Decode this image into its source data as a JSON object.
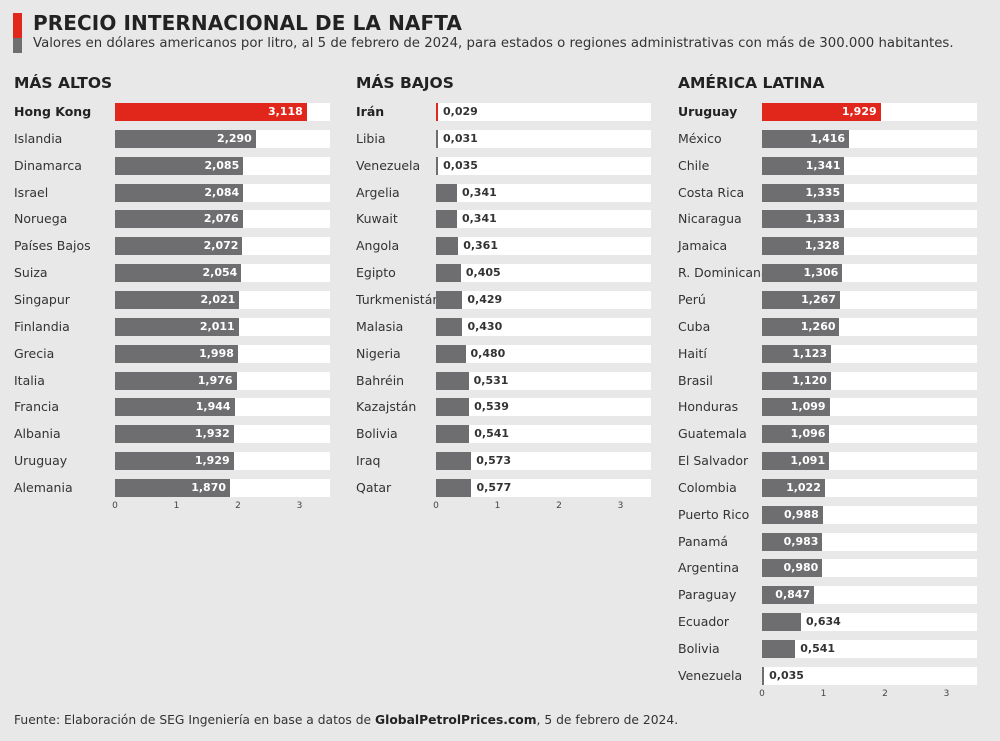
{
  "header": {
    "title": "PRECIO INTERNACIONAL DE LA NAFTA",
    "subtitle": "Valores en dólares americanos por litro, al 5 de febrero de 2024, para estados o regiones administrativas con más de 300.000 habitantes.",
    "accent_color": "#e1261c",
    "accent_color_secondary": "#6e6e70"
  },
  "colors": {
    "bar": "#6e6e70",
    "highlight": "#e1261c",
    "track": "#ffffff",
    "background": "#e8e8e9"
  },
  "chart_data": [
    {
      "type": "bar",
      "orientation": "horizontal",
      "title": "MÁS ALTOS",
      "xlim": [
        0,
        3.5
      ],
      "xticks": [
        "0",
        "1",
        "2",
        "3"
      ],
      "highlight": "Hong Kong",
      "categories": [
        "Hong Kong",
        "Islandia",
        "Dinamarca",
        "Israel",
        "Noruega",
        "Países Bajos",
        "Suiza",
        "Singapur",
        "Finlandia",
        "Grecia",
        "Italia",
        "Francia",
        "Albania",
        "Uruguay",
        "Alemania"
      ],
      "values": [
        3.118,
        2.29,
        2.085,
        2.084,
        2.076,
        2.072,
        2.054,
        2.021,
        2.011,
        1.998,
        1.976,
        1.944,
        1.932,
        1.929,
        1.87
      ],
      "labels": [
        "3,118",
        "2,290",
        "2,085",
        "2,084",
        "2,076",
        "2,072",
        "2,054",
        "2,021",
        "2,011",
        "1,998",
        "1,976",
        "1,944",
        "1,932",
        "1,929",
        "1,870"
      ]
    },
    {
      "type": "bar",
      "orientation": "horizontal",
      "title": "MÁS BAJOS",
      "xlim": [
        0,
        3.5
      ],
      "xticks": [
        "0",
        "1",
        "2",
        "3"
      ],
      "highlight": "Irán",
      "categories": [
        "Irán",
        "Libia",
        "Venezuela",
        "Argelia",
        "Kuwait",
        "Angola",
        "Egipto",
        "Turkmenistán",
        "Malasia",
        "Nigeria",
        "Bahréin",
        "Kazajstán",
        "Bolivia",
        "Iraq",
        "Qatar"
      ],
      "values": [
        0.029,
        0.031,
        0.035,
        0.341,
        0.341,
        0.361,
        0.405,
        0.429,
        0.43,
        0.48,
        0.531,
        0.539,
        0.541,
        0.573,
        0.577
      ],
      "labels": [
        "0,029",
        "0,031",
        "0,035",
        "0,341",
        "0,341",
        "0,361",
        "0,405",
        "0,429",
        "0,430",
        "0,480",
        "0,531",
        "0,539",
        "0,541",
        "0,573",
        "0,577"
      ]
    },
    {
      "type": "bar",
      "orientation": "horizontal",
      "title": "AMÉRICA LATINA",
      "xlim": [
        0,
        3.5
      ],
      "xticks": [
        "0",
        "1",
        "2",
        "3"
      ],
      "highlight": "Uruguay",
      "categories": [
        "Uruguay",
        "México",
        "Chile",
        "Costa Rica",
        "Nicaragua",
        "Jamaica",
        "R. Dominicana",
        "Perú",
        "Cuba",
        "Haití",
        "Brasil",
        "Honduras",
        "Guatemala",
        "El Salvador",
        "Colombia",
        "Puerto Rico",
        "Panamá",
        "Argentina",
        "Paraguay",
        "Ecuador",
        "Bolivia",
        "Venezuela"
      ],
      "values": [
        1.929,
        1.416,
        1.341,
        1.335,
        1.333,
        1.328,
        1.306,
        1.267,
        1.26,
        1.123,
        1.12,
        1.099,
        1.096,
        1.091,
        1.022,
        0.988,
        0.983,
        0.98,
        0.847,
        0.634,
        0.541,
        0.035
      ],
      "labels": [
        "1,929",
        "1,416",
        "1,341",
        "1,335",
        "1,333",
        "1,328",
        "1,306",
        "1,267",
        "1,260",
        "1,123",
        "1,120",
        "1,099",
        "1,096",
        "1,091",
        "1,022",
        "0,988",
        "0,983",
        "0,980",
        "0,847",
        "0,634",
        "0,541",
        "0,035"
      ]
    }
  ],
  "source": {
    "prefix": "Fuente: Elaboración de SEG Ingeniería en base a datos de ",
    "site": "GlobalPetrolPrices.com",
    "suffix": ", 5 de febrero de 2024."
  }
}
